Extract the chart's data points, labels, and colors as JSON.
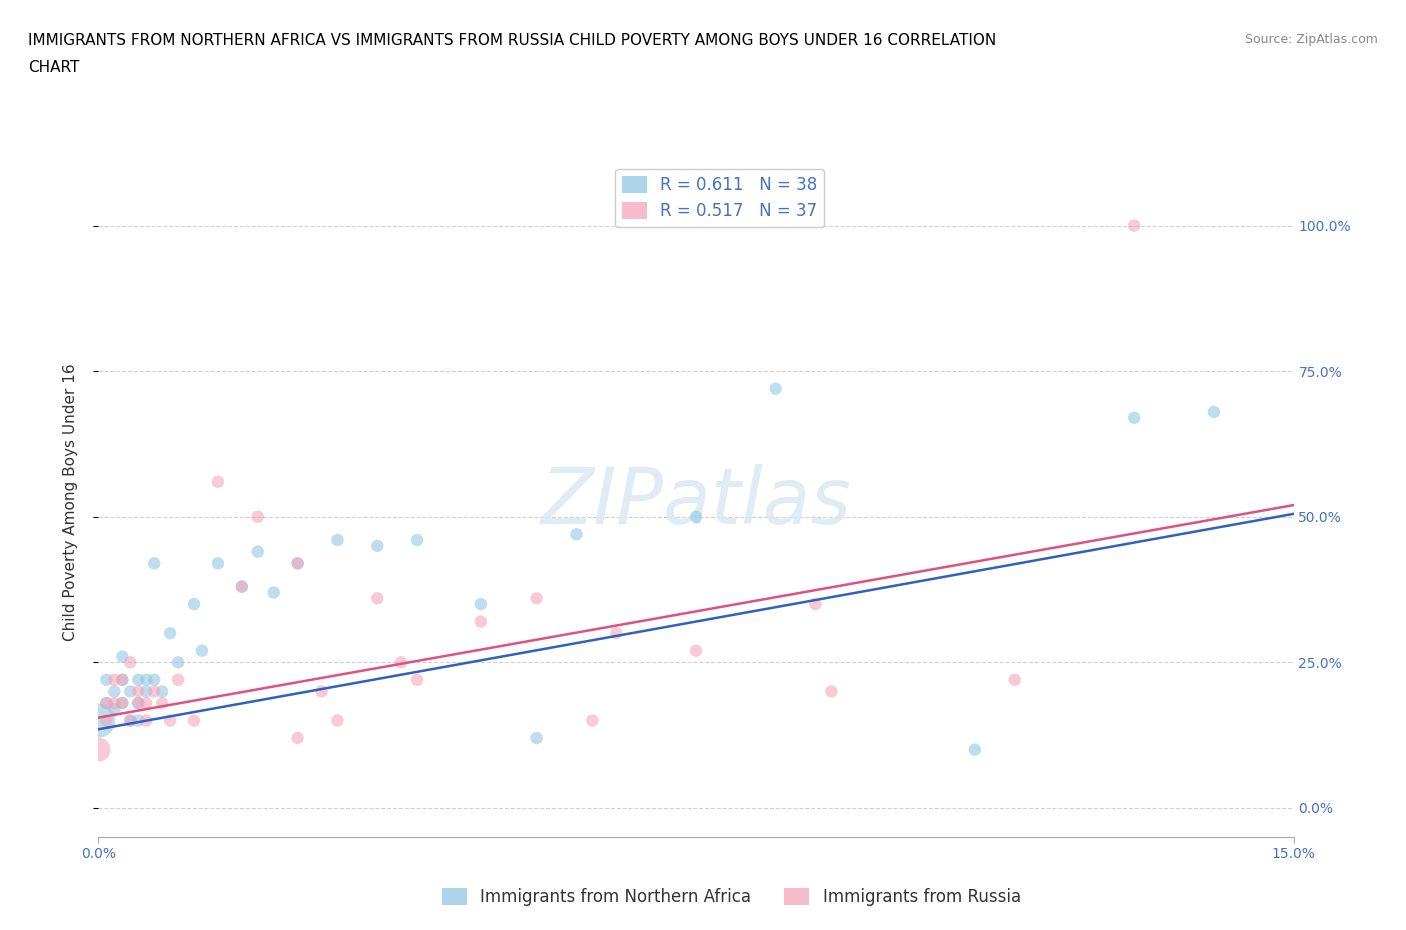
{
  "title_line1": "IMMIGRANTS FROM NORTHERN AFRICA VS IMMIGRANTS FROM RUSSIA CHILD POVERTY AMONG BOYS UNDER 16 CORRELATION",
  "title_line2": "CHART",
  "source_text": "Source: ZipAtlas.com",
  "ylabel": "Child Poverty Among Boys Under 16",
  "xlim": [
    0.0,
    0.15
  ],
  "ylim": [
    -0.05,
    1.1
  ],
  "yticks": [
    0.0,
    0.25,
    0.5,
    0.75,
    1.0
  ],
  "right_ytick_labels": [
    "0.0%",
    "25.0%",
    "50.0%",
    "75.0%",
    "100.0%"
  ],
  "xtick_positions": [
    0.0,
    0.15
  ],
  "xtick_labels": [
    "0.0%",
    "15.0%"
  ],
  "color_blue": "#89c4e1",
  "color_pink": "#f4a0b5",
  "color_blue_line": "#3060c0",
  "color_pink_line": "#e05080",
  "legend_label_blue": "Immigrants from Northern Africa",
  "legend_label_pink": "Immigrants from Russia",
  "watermark": "ZIPatlas",
  "blue_x": [
    0.0,
    0.001,
    0.001,
    0.002,
    0.002,
    0.003,
    0.003,
    0.003,
    0.004,
    0.004,
    0.005,
    0.005,
    0.005,
    0.006,
    0.006,
    0.007,
    0.007,
    0.008,
    0.009,
    0.01,
    0.012,
    0.013,
    0.015,
    0.018,
    0.02,
    0.022,
    0.025,
    0.03,
    0.035,
    0.04,
    0.048,
    0.055,
    0.06,
    0.075,
    0.085,
    0.11,
    0.13,
    0.14
  ],
  "blue_y": [
    0.15,
    0.18,
    0.22,
    0.2,
    0.17,
    0.22,
    0.18,
    0.26,
    0.2,
    0.15,
    0.22,
    0.18,
    0.15,
    0.2,
    0.22,
    0.22,
    0.42,
    0.2,
    0.3,
    0.25,
    0.35,
    0.27,
    0.42,
    0.38,
    0.44,
    0.37,
    0.42,
    0.46,
    0.45,
    0.46,
    0.35,
    0.12,
    0.47,
    0.5,
    0.72,
    0.1,
    0.67,
    0.68
  ],
  "blue_size": [
    600,
    80,
    80,
    80,
    80,
    80,
    80,
    80,
    80,
    80,
    80,
    80,
    80,
    80,
    80,
    80,
    80,
    80,
    80,
    80,
    80,
    80,
    80,
    80,
    80,
    80,
    80,
    80,
    80,
    80,
    80,
    80,
    80,
    80,
    80,
    80,
    80,
    80
  ],
  "pink_x": [
    0.0,
    0.001,
    0.001,
    0.002,
    0.002,
    0.003,
    0.003,
    0.004,
    0.004,
    0.005,
    0.005,
    0.006,
    0.006,
    0.007,
    0.008,
    0.009,
    0.01,
    0.012,
    0.015,
    0.018,
    0.02,
    0.025,
    0.025,
    0.028,
    0.03,
    0.035,
    0.038,
    0.04,
    0.048,
    0.055,
    0.062,
    0.065,
    0.075,
    0.09,
    0.092,
    0.115,
    0.13
  ],
  "pink_y": [
    0.1,
    0.15,
    0.18,
    0.18,
    0.22,
    0.18,
    0.22,
    0.15,
    0.25,
    0.2,
    0.18,
    0.18,
    0.15,
    0.2,
    0.18,
    0.15,
    0.22,
    0.15,
    0.56,
    0.38,
    0.5,
    0.42,
    0.12,
    0.2,
    0.15,
    0.36,
    0.25,
    0.22,
    0.32,
    0.36,
    0.15,
    0.3,
    0.27,
    0.35,
    0.2,
    0.22,
    1.0
  ],
  "pink_size": [
    300,
    80,
    80,
    80,
    80,
    80,
    80,
    80,
    80,
    80,
    80,
    80,
    80,
    80,
    80,
    80,
    80,
    80,
    80,
    80,
    80,
    80,
    80,
    80,
    80,
    80,
    80,
    80,
    80,
    80,
    80,
    80,
    80,
    80,
    80,
    80,
    80
  ],
  "blue_line_x": [
    0.0,
    0.15
  ],
  "blue_line_y": [
    0.135,
    0.505
  ],
  "pink_line_x": [
    0.0,
    0.15
  ],
  "pink_line_y": [
    0.155,
    0.52
  ],
  "title_fontsize": 11,
  "axis_label_fontsize": 11,
  "tick_fontsize": 10,
  "legend_fontsize": 12
}
